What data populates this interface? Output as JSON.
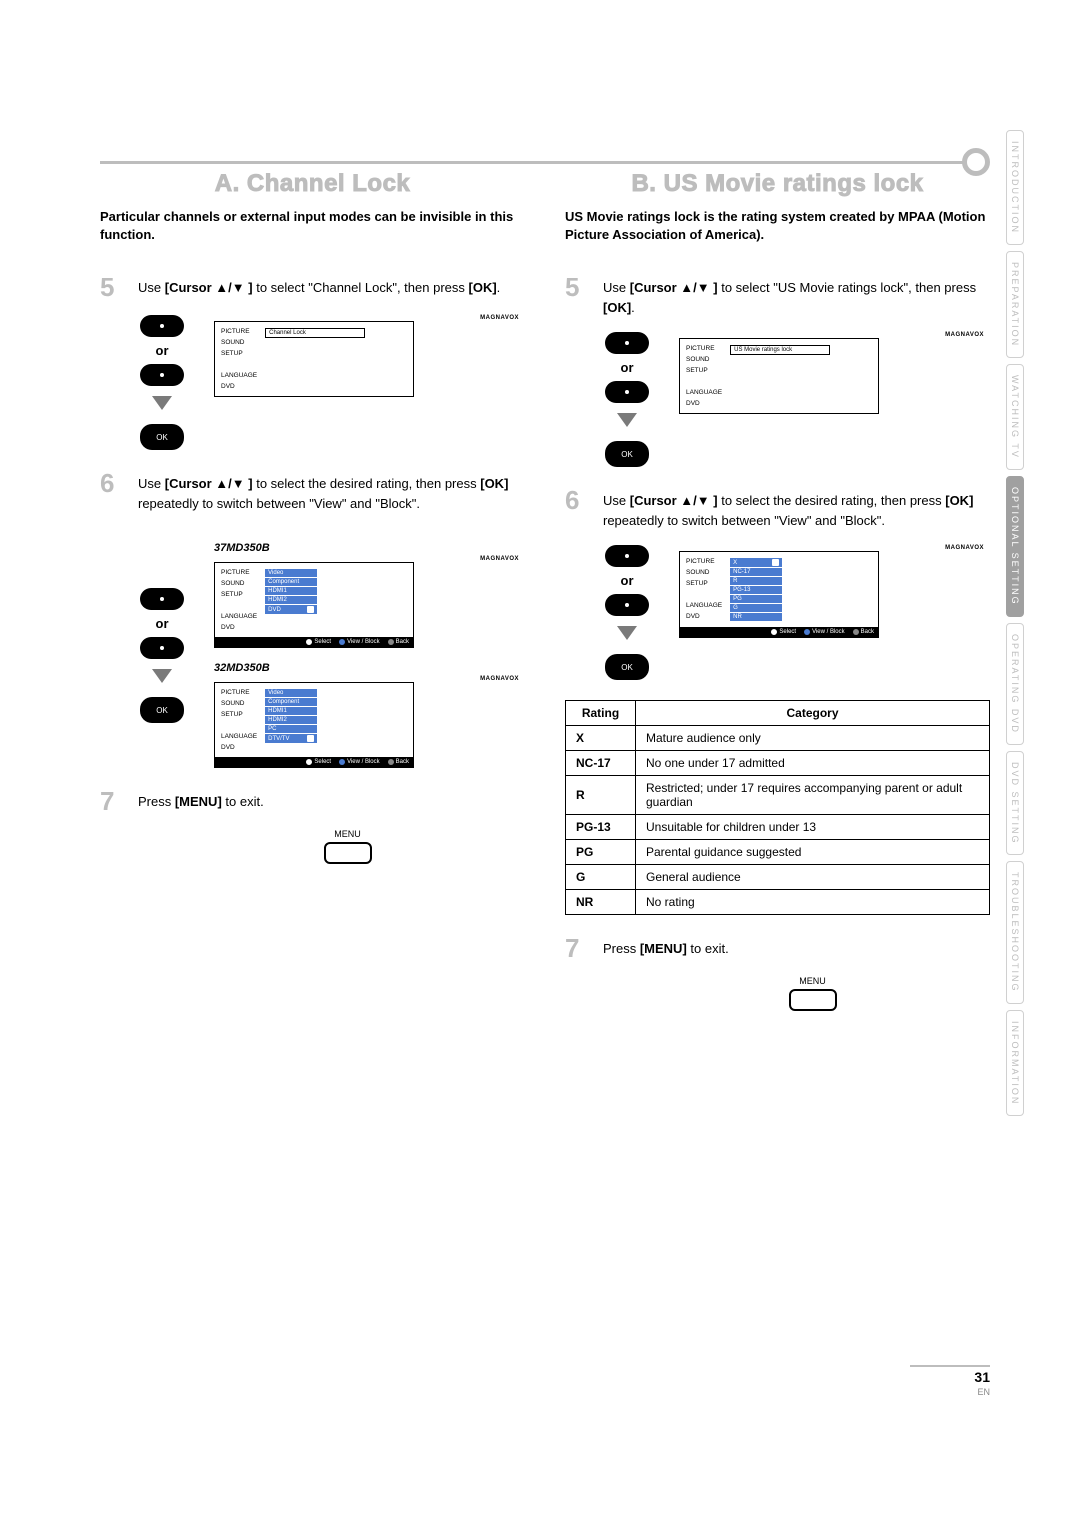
{
  "sectionA": {
    "title": "A.  Channel Lock",
    "intro": "Particular channels or external input modes can be invisible in this function.",
    "step5": {
      "num": "5",
      "pre": "Use ",
      "bold": "[Cursor ▲/▼ ]",
      "post": " to select \"Channel Lock\", then press ",
      "ok": "[OK]",
      "end": "."
    },
    "step6": {
      "num": "6",
      "pre": "Use ",
      "bold": "[Cursor ▲/▼ ]",
      "post": " to select the desired rating, then press ",
      "ok": "[OK]",
      "post2": " repeatedly to switch between \"View\" and \"Block\"."
    },
    "step7": {
      "num": "7",
      "pre": "Press ",
      "bold": "[MENU]",
      "post": " to exit."
    },
    "model1": "37MD350B",
    "model2": "32MD350B"
  },
  "sectionB": {
    "title": "B. US Movie ratings lock",
    "intro": "US Movie ratings lock is the rating system created by MPAA (Motion Picture Association of America).",
    "step5": {
      "num": "5",
      "pre": "Use ",
      "bold": "[Cursor ▲/▼ ]",
      "post": " to select \"US Movie ratings lock\", then press ",
      "ok": "[OK]",
      "end": "."
    },
    "step6": {
      "num": "6",
      "pre": "Use ",
      "bold": "[Cursor ▲/▼ ]",
      "post": " to select the desired rating, then press ",
      "ok": "[OK]",
      "post2": " repeatedly to switch between \"View\" and \"Block\"."
    },
    "step7": {
      "num": "7",
      "pre": "Press ",
      "bold": "[MENU]",
      "post": " to exit."
    }
  },
  "remote": {
    "or": "or",
    "ok": "OK"
  },
  "brand": "MAGNAVOX",
  "menu": {
    "left": [
      "PICTURE",
      "SOUND",
      "SETUP",
      "",
      "LANGUAGE",
      "DVD"
    ],
    "channelLock": "Channel Lock",
    "usMovie": "US Movie ratings lock",
    "items37": [
      "Video",
      "Component",
      "HDMI1",
      "HDMI2",
      "DVD"
    ],
    "items32": [
      "Video",
      "Component",
      "HDMI1",
      "HDMI2",
      "PC",
      "DTV/TV"
    ],
    "ratingsB": [
      "X",
      "NC-17",
      "R",
      "PG-13",
      "PG",
      "G",
      "NR"
    ],
    "footer": {
      "select": "Select",
      "viewBlock": "View / Block",
      "back": "Back"
    }
  },
  "menuButton": "MENU",
  "ratingsTable": {
    "headers": [
      "Rating",
      "Category"
    ],
    "rows": [
      [
        "X",
        "Mature audience only"
      ],
      [
        "NC-17",
        "No one under 17 admitted"
      ],
      [
        "R",
        "Restricted; under 17 requires accompanying parent or adult guardian"
      ],
      [
        "PG-13",
        "Unsuitable for children under 13"
      ],
      [
        "PG",
        "Parental guidance suggested"
      ],
      [
        "G",
        "General audience"
      ],
      [
        "NR",
        "No rating"
      ]
    ]
  },
  "sideTabs": [
    {
      "label": "INTRODUCTION",
      "active": false
    },
    {
      "label": "PREPARATION",
      "active": false
    },
    {
      "label": "WATCHING TV",
      "active": false
    },
    {
      "label": "OPTIONAL SETTING",
      "active": true
    },
    {
      "label": "OPERATING DVD",
      "active": false
    },
    {
      "label": "DVD SETTING",
      "active": false
    },
    {
      "label": "TROUBLESHOOTING",
      "active": false
    },
    {
      "label": "INFORMATION",
      "active": false
    }
  ],
  "page": {
    "num": "31",
    "lang": "EN"
  },
  "colors": {
    "gray": "#bdbdbd",
    "blue": "#4a7bd0",
    "text": "#000000"
  }
}
